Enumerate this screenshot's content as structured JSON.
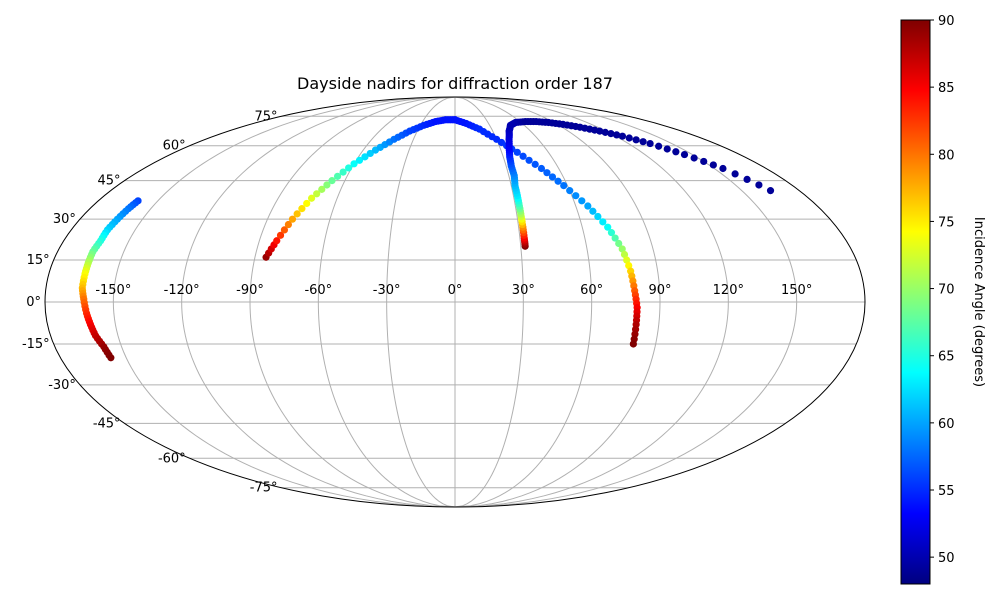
{
  "chart_data": {
    "type": "scatter",
    "projection": "mollweide",
    "title": "Dayside nadirs for diffraction order 187",
    "xlabel": "",
    "ylabel": "",
    "grid": true,
    "longitude_ticks": [
      -150,
      -120,
      -90,
      -60,
      -30,
      0,
      30,
      60,
      90,
      120,
      150
    ],
    "longitude_tick_labels": [
      "-150°",
      "-120°",
      "-90°",
      "-60°",
      "-30°",
      "0°",
      "30°",
      "60°",
      "90°",
      "120°",
      "150°"
    ],
    "latitude_ticks": [
      -75,
      -60,
      -45,
      -30,
      -15,
      0,
      15,
      30,
      45,
      60,
      75
    ],
    "latitude_tick_labels": [
      "-75°",
      "-60°",
      "-45°",
      "-30°",
      "-15°",
      "0°",
      "15°",
      "30°",
      "45°",
      "60°",
      "75°"
    ],
    "colorbar": {
      "label": "Incidence Angle (degrees)",
      "range": [
        48,
        90
      ],
      "ticks": [
        50,
        55,
        60,
        65,
        70,
        75,
        80,
        85,
        90
      ],
      "colormap": "jet"
    },
    "series": [
      {
        "lon": [
          -160,
          -161,
          -162,
          -163,
          -163,
          -164,
          -164,
          -164,
          -164,
          -163,
          -162,
          -161,
          -160,
          -158,
          -157
        ],
        "lat": [
          37,
          34,
          30,
          26,
          22,
          18,
          14,
          10,
          5,
          1,
          -4,
          -8,
          -12,
          -16,
          -20
        ],
        "incidence": [
          56,
          58,
          60,
          62,
          65,
          68,
          71,
          74,
          77,
          80,
          83,
          85,
          87,
          89,
          90
        ]
      },
      {
        "lon": [
          -85,
          -82,
          -78,
          -73,
          -67,
          -60,
          -52,
          -44,
          -36,
          -27,
          -18,
          -9,
          0
        ],
        "lat": [
          16,
          22,
          30,
          38,
          45,
          52,
          58,
          63,
          67,
          70,
          72,
          73,
          73
        ],
        "incidence": [
          89,
          84,
          78,
          73,
          68,
          64,
          61,
          58,
          56,
          55,
          54,
          54,
          54
        ]
      },
      {
        "lon": [
          0,
          10,
          20,
          30,
          40,
          50,
          58,
          66,
          72,
          76,
          78,
          79,
          80,
          80,
          80
        ],
        "lat": [
          73,
          71,
          68,
          63,
          57,
          50,
          43,
          35,
          27,
          19,
          11,
          4,
          -2,
          -8,
          -15
        ],
        "incidence": [
          54,
          54,
          55,
          55,
          56,
          57,
          58,
          60,
          64,
          70,
          76,
          81,
          85,
          88,
          90
        ]
      },
      {
        "lon": [
          32,
          32,
          32,
          32,
          32,
          32,
          32,
          33,
          33,
          34,
          36,
          39,
          43,
          48,
          55,
          65,
          75,
          85,
          95,
          105,
          115,
          125,
          135,
          145,
          155,
          165
        ],
        "lat": [
          20,
          23,
          27,
          31,
          35,
          39,
          43,
          47,
          51,
          55,
          59,
          63,
          67,
          70,
          71.5,
          72,
          72,
          71.5,
          70.5,
          69,
          67,
          64.5,
          61,
          56,
          50,
          41
        ],
        "incidence": [
          90,
          85,
          79,
          72,
          67,
          63,
          61,
          59,
          57,
          55,
          53,
          52,
          51,
          50,
          50,
          49,
          49,
          49,
          49,
          49,
          49,
          49,
          49,
          49,
          49,
          49
        ]
      }
    ]
  }
}
